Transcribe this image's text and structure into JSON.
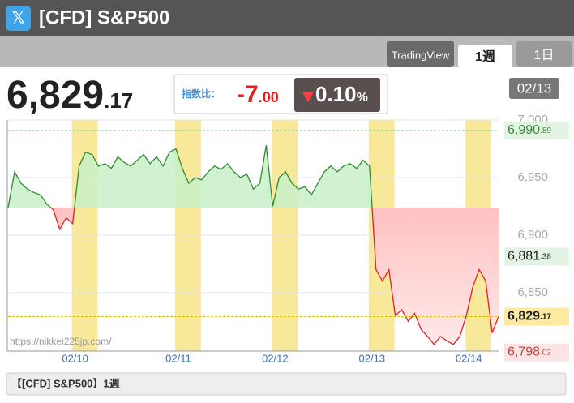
{
  "header": {
    "icon": "𝕏",
    "title": "[CFD] S&P500"
  },
  "tabs": [
    "TradingView",
    "1週",
    "1日"
  ],
  "price": {
    "main": "6,829",
    "decimal": ".17"
  },
  "change": {
    "label": "指数比：",
    "value_main": "-7",
    "value_decimal": ".00",
    "percent_main": "0.10",
    "percent_unit": "%"
  },
  "date_badge": "02/13",
  "watermark": "https://nikkei225jp.com/",
  "footer": "【[CFD] S&P500】1週",
  "chart_data": {
    "type": "line",
    "categories": [
      null,
      null,
      null,
      null,
      null,
      null,
      null,
      null,
      null,
      null,
      "02/10",
      null,
      null,
      null,
      null,
      null,
      null,
      null,
      null,
      null,
      null,
      null,
      null,
      null,
      null,
      null,
      "02/11",
      null,
      null,
      null,
      null,
      null,
      null,
      null,
      null,
      null,
      null,
      null,
      null,
      null,
      null,
      "02/12",
      null,
      null,
      null,
      null,
      null,
      null,
      null,
      null,
      null,
      null,
      null,
      null,
      null,
      null,
      "02/13",
      null,
      null,
      null,
      null,
      null,
      null,
      null,
      null,
      null,
      null,
      null,
      null,
      null,
      null,
      "02/14",
      null,
      null,
      null,
      null,
      null
    ],
    "values": [
      6924,
      6955,
      6945,
      6940,
      6937,
      6935,
      6927,
      6922,
      6905,
      6915,
      6910,
      6960,
      6972,
      6970,
      6960,
      6962,
      6958,
      6968,
      6963,
      6960,
      6965,
      6970,
      6962,
      6968,
      6960,
      6972,
      6975,
      6958,
      6945,
      6950,
      6948,
      6955,
      6960,
      6957,
      6962,
      6955,
      6950,
      6953,
      6940,
      6945,
      6978,
      6925,
      6950,
      6955,
      6945,
      6940,
      6942,
      6935,
      6945,
      6955,
      6960,
      6955,
      6960,
      6962,
      6958,
      6965,
      6960,
      6870,
      6860,
      6870,
      6830,
      6835,
      6825,
      6832,
      6818,
      6812,
      6805,
      6812,
      6808,
      6805,
      6812,
      6830,
      6855,
      6870,
      6860,
      6815,
      6829.17
    ],
    "up_color": "#2e8b2e",
    "down_color": "#e02020",
    "ylim": [
      6795,
      7000
    ],
    "yticks": [
      {
        "value": 7000,
        "label": "7,000"
      },
      {
        "value": 6950,
        "label": "6,950"
      },
      {
        "value": 6900,
        "label": "6,900"
      },
      {
        "value": 6850,
        "label": "6,850"
      }
    ],
    "level_labels": [
      {
        "value": 6990.89,
        "main": "6,990",
        "decimal": ".89",
        "kind": "high"
      },
      {
        "value": 6881.38,
        "main": "6,881",
        "decimal": ".38",
        "kind": "prev"
      },
      {
        "value": 6829.17,
        "main": "6,829",
        "decimal": ".17",
        "kind": "current"
      },
      {
        "value": 6798.02,
        "main": "6,798",
        "decimal": ".02",
        "kind": "low"
      }
    ]
  }
}
